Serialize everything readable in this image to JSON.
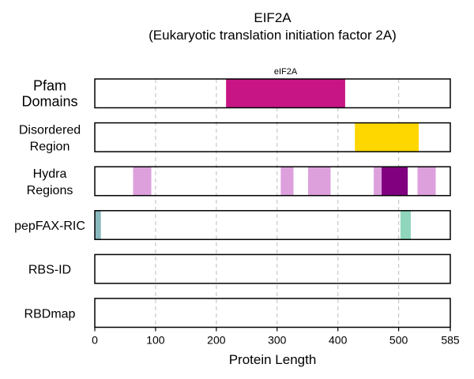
{
  "chart_data": {
    "type": "bar",
    "title": [
      "EIF2A",
      "(Eukaryotic translation initiation factor 2A)"
    ],
    "xlabel": "Protein Length",
    "xlim": [
      0,
      585
    ],
    "xticks": [
      0,
      100,
      200,
      300,
      400,
      500,
      585
    ],
    "grid": "vertical dashed at 100, 200, 300, 400, 500",
    "tracks": [
      {
        "label": [
          "Pfam",
          "Domains"
        ],
        "label_style": "large",
        "segments": [
          {
            "start": 216,
            "end": 412,
            "color": "#C71585",
            "label": "eIF2A"
          }
        ]
      },
      {
        "label": [
          "Disordered",
          "Region"
        ],
        "segments": [
          {
            "start": 428,
            "end": 533,
            "color": "#FFD700"
          }
        ]
      },
      {
        "label": [
          "Hydra",
          "Regions"
        ],
        "segments": [
          {
            "start": 63,
            "end": 93,
            "color": "#DDA0DD"
          },
          {
            "start": 306,
            "end": 327,
            "color": "#DDA0DD"
          },
          {
            "start": 351,
            "end": 388,
            "color": "#DDA0DD"
          },
          {
            "start": 459,
            "end": 472,
            "color": "#DDA0DD"
          },
          {
            "start": 472,
            "end": 515,
            "color": "#800080"
          },
          {
            "start": 531,
            "end": 561,
            "color": "#DDA0DD"
          }
        ]
      },
      {
        "label": [
          "pepFAX-RIC"
        ],
        "segments": [
          {
            "start": 0,
            "end": 10,
            "color": "#8AB9BE"
          },
          {
            "start": 503,
            "end": 520,
            "color": "#8FD6BC"
          }
        ]
      },
      {
        "label": [
          "RBS-ID"
        ],
        "segments": []
      },
      {
        "label": [
          "RBDmap"
        ],
        "segments": []
      }
    ]
  }
}
